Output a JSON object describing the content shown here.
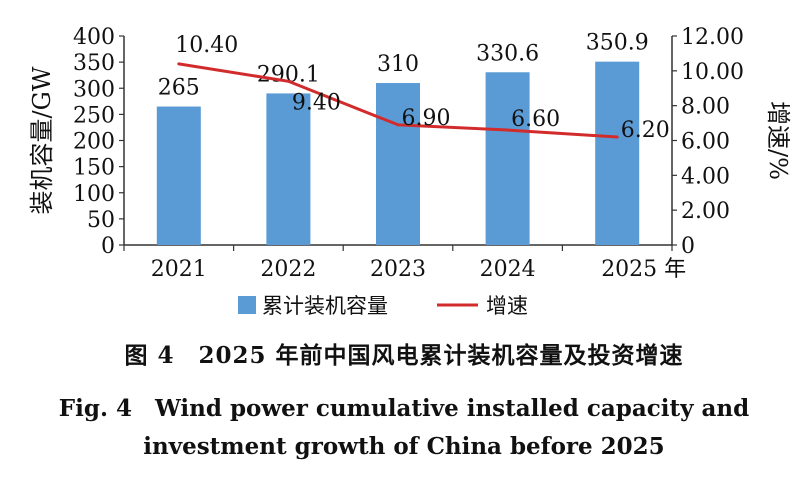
{
  "chart_data": {
    "type": "bar",
    "categories": [
      "2021",
      "2022",
      "2023",
      "2024",
      "2025 年"
    ],
    "series": [
      {
        "name": "累计装机容量",
        "kind": "bar",
        "axis": "left",
        "values": [
          265,
          290.1,
          310,
          330.6,
          350.9
        ],
        "labels": [
          "265",
          "290.1",
          "310",
          "330.6",
          "350.9"
        ],
        "color": "#5b9bd5"
      },
      {
        "name": "增速",
        "kind": "line",
        "axis": "right",
        "values": [
          10.4,
          9.4,
          6.9,
          6.6,
          6.2
        ],
        "labels": [
          "10.40",
          "9.40",
          "6.90",
          "6.60",
          "6.20"
        ],
        "color": "#d22b2b"
      }
    ],
    "ylabel": "装机容量/GW",
    "y2label": "增速/%",
    "ylim": [
      0,
      400
    ],
    "y2lim": [
      0,
      12
    ],
    "yticks": [
      "0",
      "50",
      "100",
      "150",
      "200",
      "250",
      "300",
      "350",
      "400"
    ],
    "y2ticks": [
      "0",
      "2.00",
      "4.00",
      "6.00",
      "8.00",
      "10.00",
      "12.00"
    ],
    "legend_position": "bottom",
    "grid": false
  },
  "caption": {
    "zh": "图 4　2025 年前中国风电累计装机容量及投资增速",
    "en_line1": "Fig. 4　Wind power cumulative installed capacity and",
    "en_line2": "investment growth of China before 2025"
  }
}
